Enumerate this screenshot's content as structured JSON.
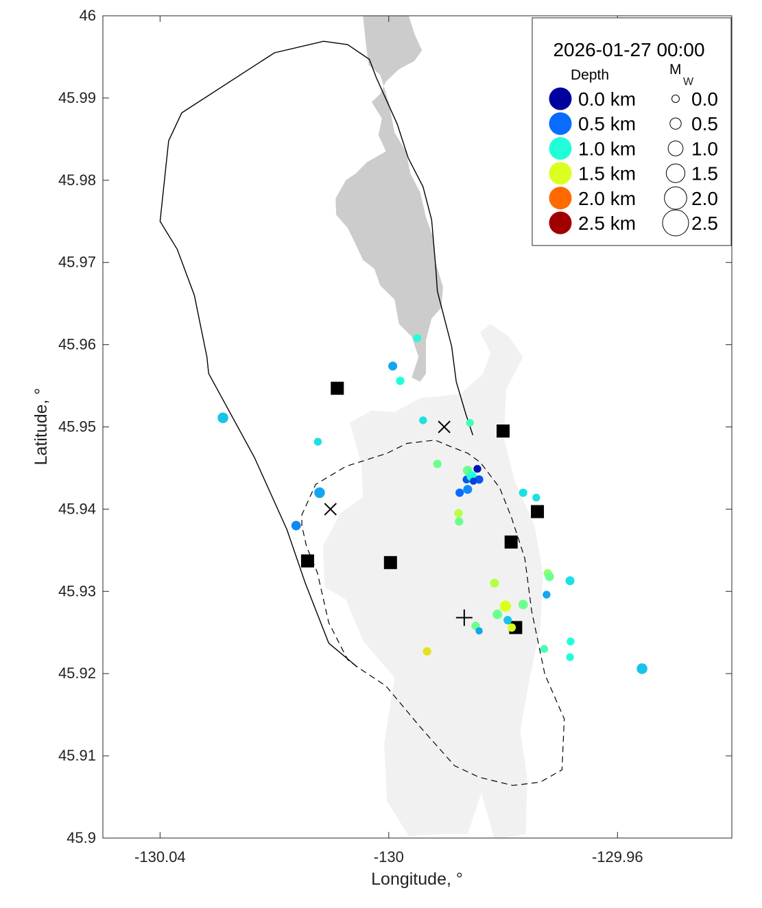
{
  "chart_data": {
    "type": "scatter",
    "xlabel": "Longitude, °",
    "ylabel": "Latitude, °",
    "xlim": [
      -130.05,
      -129.94
    ],
    "ylim": [
      45.9,
      46.0
    ],
    "xticks": [
      {
        "value": -130.04,
        "label": "-130.04"
      },
      {
        "value": -130.0,
        "label": "-130"
      },
      {
        "value": -129.96,
        "label": "-129.96"
      }
    ],
    "yticks": [
      {
        "value": 45.9,
        "label": "45.9"
      },
      {
        "value": 45.91,
        "label": "45.91"
      },
      {
        "value": 45.92,
        "label": "45.92"
      },
      {
        "value": 45.93,
        "label": "45.93"
      },
      {
        "value": 45.94,
        "label": "45.94"
      },
      {
        "value": 45.95,
        "label": "45.95"
      },
      {
        "value": 45.96,
        "label": "45.96"
      },
      {
        "value": 45.97,
        "label": "45.97"
      },
      {
        "value": 45.98,
        "label": "45.98"
      },
      {
        "value": 45.99,
        "label": "45.99"
      },
      {
        "value": 46.0,
        "label": "46"
      }
    ],
    "grid": false,
    "legend": {
      "position": "top-right",
      "title": "2026-01-27 00:00",
      "depth_heading": "Depth",
      "mag_heading": "M",
      "mag_subscript": "W",
      "depth_entries": [
        {
          "label": "0.0 km",
          "color": "#00009f"
        },
        {
          "label": "0.5 km",
          "color": "#0a6bff"
        },
        {
          "label": "1.0 km",
          "color": "#20ffd8"
        },
        {
          "label": "1.5 km",
          "color": "#dcff20"
        },
        {
          "label": "2.0 km",
          "color": "#ff6a00"
        },
        {
          "label": "2.5 km",
          "color": "#a00000"
        }
      ],
      "mag_entries": [
        {
          "label": "0.0",
          "mw": 0.0
        },
        {
          "label": "0.5",
          "mw": 0.5
        },
        {
          "label": "1.0",
          "mw": 1.0
        },
        {
          "label": "1.5",
          "mw": 1.5
        },
        {
          "label": "2.0",
          "mw": 2.0
        },
        {
          "label": "2.5",
          "mw": 2.5
        }
      ]
    },
    "earthquakes": [
      {
        "lon": -130.029,
        "lat": 45.9511,
        "depth_km": 0.8,
        "mw": 0.9
      },
      {
        "lon": -130.0162,
        "lat": 45.938,
        "depth_km": 0.6,
        "mw": 0.7
      },
      {
        "lon": -130.0121,
        "lat": 45.942,
        "depth_km": 0.7,
        "mw": 0.9
      },
      {
        "lon": -130.0124,
        "lat": 45.9482,
        "depth_km": 0.9,
        "mw": 0.4
      },
      {
        "lon": -129.9993,
        "lat": 45.9574,
        "depth_km": 0.7,
        "mw": 0.6
      },
      {
        "lon": -129.998,
        "lat": 45.9556,
        "depth_km": 1.0,
        "mw": 0.5
      },
      {
        "lon": -129.995,
        "lat": 45.9608,
        "depth_km": 1.0,
        "mw": 0.4
      },
      {
        "lon": -129.994,
        "lat": 45.9508,
        "depth_km": 0.9,
        "mw": 0.4
      },
      {
        "lon": -129.9915,
        "lat": 45.9455,
        "depth_km": 1.2,
        "mw": 0.5
      },
      {
        "lon": -129.9858,
        "lat": 45.9505,
        "depth_km": 1.1,
        "mw": 0.4
      },
      {
        "lon": -129.9876,
        "lat": 45.942,
        "depth_km": 0.5,
        "mw": 0.5
      },
      {
        "lon": -129.9864,
        "lat": 45.9436,
        "depth_km": 0.4,
        "mw": 0.4
      },
      {
        "lon": -129.9862,
        "lat": 45.9447,
        "depth_km": 1.2,
        "mw": 0.7
      },
      {
        "lon": -129.9855,
        "lat": 45.944,
        "depth_km": 1.0,
        "mw": 0.8
      },
      {
        "lon": -129.9845,
        "lat": 45.9449,
        "depth_km": 0.1,
        "mw": 0.4
      },
      {
        "lon": -129.9842,
        "lat": 45.9436,
        "depth_km": 0.4,
        "mw": 0.5
      },
      {
        "lon": -129.9862,
        "lat": 45.9424,
        "depth_km": 0.6,
        "mw": 0.6
      },
      {
        "lon": -129.9852,
        "lat": 45.9434,
        "depth_km": 0.3,
        "mw": 0.3
      },
      {
        "lon": -129.9878,
        "lat": 45.9395,
        "depth_km": 1.4,
        "mw": 0.5
      },
      {
        "lon": -129.9877,
        "lat": 45.9385,
        "depth_km": 1.2,
        "mw": 0.5
      },
      {
        "lon": -129.9815,
        "lat": 45.931,
        "depth_km": 1.4,
        "mw": 0.6
      },
      {
        "lon": -129.9796,
        "lat": 45.9282,
        "depth_km": 1.5,
        "mw": 1.0
      },
      {
        "lon": -129.981,
        "lat": 45.9272,
        "depth_km": 1.2,
        "mw": 0.7
      },
      {
        "lon": -129.9792,
        "lat": 45.9265,
        "depth_km": 0.8,
        "mw": 0.5
      },
      {
        "lon": -129.9785,
        "lat": 45.9256,
        "depth_km": 1.5,
        "mw": 0.5
      },
      {
        "lon": -129.9848,
        "lat": 45.9258,
        "depth_km": 1.2,
        "mw": 0.5
      },
      {
        "lon": -129.9842,
        "lat": 45.9252,
        "depth_km": 0.7,
        "mw": 0.3
      },
      {
        "lon": -129.9765,
        "lat": 45.9284,
        "depth_km": 1.2,
        "mw": 0.7
      },
      {
        "lon": -129.9765,
        "lat": 45.942,
        "depth_km": 0.9,
        "mw": 0.5
      },
      {
        "lon": -129.9742,
        "lat": 45.9414,
        "depth_km": 0.9,
        "mw": 0.4
      },
      {
        "lon": -129.9722,
        "lat": 45.9322,
        "depth_km": 1.3,
        "mw": 0.5
      },
      {
        "lon": -129.9719,
        "lat": 45.9318,
        "depth_km": 1.2,
        "mw": 0.6
      },
      {
        "lon": -129.9724,
        "lat": 45.9296,
        "depth_km": 0.7,
        "mw": 0.4
      },
      {
        "lon": -129.9683,
        "lat": 45.9313,
        "depth_km": 0.9,
        "mw": 0.6
      },
      {
        "lon": -129.9728,
        "lat": 45.923,
        "depth_km": 1.1,
        "mw": 0.4
      },
      {
        "lon": -129.9682,
        "lat": 45.9239,
        "depth_km": 1.0,
        "mw": 0.4
      },
      {
        "lon": -129.9683,
        "lat": 45.922,
        "depth_km": 1.0,
        "mw": 0.4
      },
      {
        "lon": -129.9557,
        "lat": 45.9206,
        "depth_km": 0.8,
        "mw": 0.9
      },
      {
        "lon": -129.9933,
        "lat": 45.9227,
        "depth_km": 1.6,
        "mw": 0.5
      }
    ],
    "stations_square": [
      {
        "lon": -130.009,
        "lat": 45.9547
      },
      {
        "lon": -130.0142,
        "lat": 45.9337
      },
      {
        "lon": -129.9997,
        "lat": 45.9335
      },
      {
        "lon": -129.98,
        "lat": 45.9495
      },
      {
        "lon": -129.974,
        "lat": 45.9397
      },
      {
        "lon": -129.9786,
        "lat": 45.936
      },
      {
        "lon": -129.9778,
        "lat": 45.9256
      }
    ],
    "markers_x": [
      {
        "lon": -130.0102,
        "lat": 45.94
      },
      {
        "lon": -129.9903,
        "lat": 45.95
      }
    ],
    "markers_plus": [
      {
        "lon": -129.9868,
        "lat": 45.9268
      }
    ],
    "outline_solid": [
      [
        -130.0055,
        45.9208
      ],
      [
        -130.0105,
        45.9237
      ],
      [
        -130.0146,
        45.931
      ],
      [
        -130.0178,
        45.9375
      ],
      [
        -130.0235,
        45.9463
      ],
      [
        -130.0315,
        45.9565
      ],
      [
        -130.0318,
        45.9585
      ],
      [
        -130.034,
        45.966
      ],
      [
        -130.037,
        45.9716
      ],
      [
        -130.04,
        45.975
      ],
      [
        -130.0385,
        45.9848
      ],
      [
        -130.0362,
        45.9882
      ],
      [
        -130.02,
        45.9955
      ],
      [
        -130.0114,
        45.9969
      ],
      [
        -130.0072,
        45.9965
      ],
      [
        -130.0034,
        45.9947
      ],
      [
        -130.0022,
        45.9925
      ],
      [
        -129.9985,
        45.9868
      ],
      [
        -129.9966,
        45.9827
      ],
      [
        -129.994,
        45.9792
      ],
      [
        -129.9925,
        45.9752
      ],
      [
        -129.9918,
        45.9695
      ],
      [
        -129.9915,
        45.9665
      ],
      [
        -129.989,
        45.9598
      ],
      [
        -129.9882,
        45.9555
      ],
      [
        -129.9865,
        45.9515
      ],
      [
        -129.9853,
        45.949
      ]
    ],
    "outline_dashed": [
      [
        -130.0055,
        45.9208
      ],
      [
        -130.0072,
        45.9217
      ],
      [
        -130.0105,
        45.9262
      ],
      [
        -130.0125,
        45.9323
      ],
      [
        -130.0144,
        45.9355
      ],
      [
        -130.0152,
        45.938
      ],
      [
        -130.0152,
        45.9393
      ],
      [
        -130.0128,
        45.943
      ],
      [
        -130.0075,
        45.9452
      ],
      [
        -130.0003,
        45.9468
      ],
      [
        -129.9968,
        45.948
      ],
      [
        -129.9919,
        45.9484
      ],
      [
        -129.9895,
        45.9477
      ],
      [
        -129.9862,
        45.9468
      ],
      [
        -129.984,
        45.9457
      ],
      [
        -129.9806,
        45.9426
      ],
      [
        -129.9785,
        45.9389
      ],
      [
        -129.9762,
        45.934
      ],
      [
        -129.975,
        45.9276
      ],
      [
        -129.9727,
        45.9199
      ],
      [
        -129.9693,
        45.9145
      ],
      [
        -129.9697,
        45.9083
      ],
      [
        -129.9735,
        45.9068
      ],
      [
        -129.9783,
        45.9064
      ],
      [
        -129.9842,
        45.9074
      ],
      [
        -129.9885,
        45.9088
      ],
      [
        -129.9945,
        45.9135
      ],
      [
        -130.0005,
        45.9185
      ],
      [
        -130.0055,
        45.9208
      ]
    ],
    "landmass_dark": [
      [
        -129.9965,
        46.0
      ],
      [
        -129.9955,
        45.9978
      ],
      [
        -129.9942,
        45.9958
      ],
      [
        -129.9955,
        45.9945
      ],
      [
        -129.9982,
        45.9935
      ],
      [
        -130.0005,
        45.992
      ],
      [
        -130.0015,
        45.9905
      ],
      [
        -130.003,
        45.9895
      ],
      [
        -130.0012,
        45.9875
      ],
      [
        -130.0018,
        45.9855
      ],
      [
        -130.0005,
        45.9835
      ],
      [
        -130.0038,
        45.9822
      ],
      [
        -130.0058,
        45.9808
      ],
      [
        -130.0075,
        45.98
      ],
      [
        -130.0093,
        45.9778
      ],
      [
        -130.0092,
        45.9758
      ],
      [
        -130.0072,
        45.9742
      ],
      [
        -130.0058,
        45.9722
      ],
      [
        -130.0045,
        45.9703
      ],
      [
        -130.0025,
        45.9692
      ],
      [
        -130.0015,
        45.9672
      ],
      [
        -129.999,
        45.9655
      ],
      [
        -129.9982,
        45.9625
      ],
      [
        -129.996,
        45.961
      ],
      [
        -129.9948,
        45.9585
      ],
      [
        -129.996,
        45.956
      ],
      [
        -129.9945,
        45.9555
      ],
      [
        -129.9935,
        45.9565
      ],
      [
        -129.9935,
        45.9605
      ],
      [
        -129.9925,
        45.9632
      ],
      [
        -129.9908,
        45.9645
      ],
      [
        -129.9905,
        45.967
      ],
      [
        -129.9918,
        45.97
      ],
      [
        -129.9922,
        45.973
      ],
      [
        -129.9935,
        45.9755
      ],
      [
        -129.9945,
        45.9785
      ],
      [
        -129.9962,
        45.9808
      ],
      [
        -129.997,
        45.9835
      ],
      [
        -129.999,
        45.9858
      ],
      [
        -130.0,
        45.9895
      ],
      [
        -130.0015,
        45.9928
      ],
      [
        -130.0035,
        45.994
      ],
      [
        -130.004,
        45.9965
      ],
      [
        -130.0045,
        46.0
      ]
    ],
    "landmass_light": [
      [
        -129.9905,
        45.9005
      ],
      [
        -129.9965,
        45.9002
      ],
      [
        -130.0003,
        45.9045
      ],
      [
        -130.0008,
        45.9115
      ],
      [
        -129.999,
        45.9195
      ],
      [
        -130.0045,
        45.924
      ],
      [
        -130.0075,
        45.929
      ],
      [
        -130.0112,
        45.9305
      ],
      [
        -130.0115,
        45.9355
      ],
      [
        -130.0085,
        45.9395
      ],
      [
        -130.0045,
        45.9415
      ],
      [
        -130.0048,
        45.9455
      ],
      [
        -130.0068,
        45.9505
      ],
      [
        -130.003,
        45.952
      ],
      [
        -129.999,
        45.9518
      ],
      [
        -129.9945,
        45.9535
      ],
      [
        -129.9875,
        45.954
      ],
      [
        -129.9835,
        45.9565
      ],
      [
        -129.9822,
        45.959
      ],
      [
        -129.984,
        45.9615
      ],
      [
        -129.9822,
        45.9625
      ],
      [
        -129.979,
        45.961
      ],
      [
        -129.9765,
        45.9585
      ],
      [
        -129.9795,
        45.9545
      ],
      [
        -129.9798,
        45.9485
      ],
      [
        -129.978,
        45.9435
      ],
      [
        -129.9745,
        45.938
      ],
      [
        -129.973,
        45.932
      ],
      [
        -129.9735,
        45.9255
      ],
      [
        -129.9755,
        45.919
      ],
      [
        -129.977,
        45.913
      ],
      [
        -129.9758,
        45.9075
      ],
      [
        -129.976,
        45.9005
      ],
      [
        -129.9815,
        45.8998
      ],
      [
        -129.9838,
        45.9055
      ],
      [
        -129.9862,
        45.9005
      ]
    ]
  }
}
